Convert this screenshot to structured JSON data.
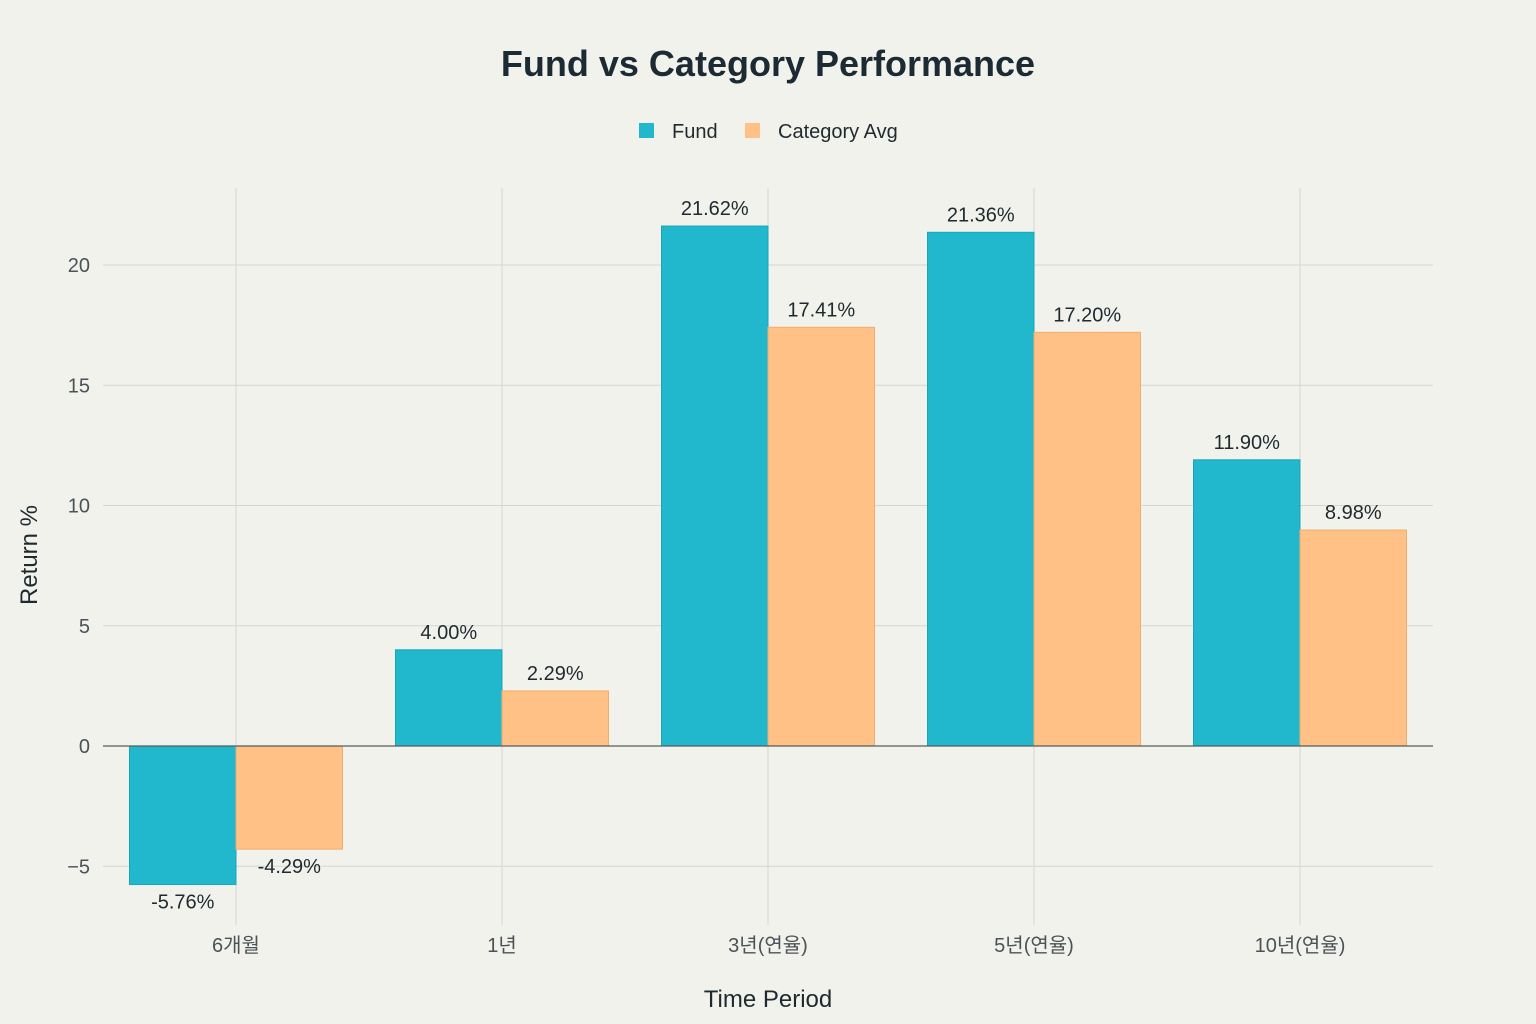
{
  "chart_data": {
    "type": "bar",
    "title": "Fund vs Category Performance",
    "xlabel": "Time Period",
    "ylabel": "Return %",
    "categories": [
      "6개월",
      "1년",
      "3년(연율)",
      "5년(연율)",
      "10년(연율)"
    ],
    "series": [
      {
        "name": "Fund",
        "color": "#21b7cc",
        "values": [
          -5.76,
          4.0,
          21.62,
          21.36,
          11.9
        ],
        "labels": [
          "-5.76%",
          "4.00%",
          "21.62%",
          "21.36%",
          "11.90%"
        ]
      },
      {
        "name": "Category Avg",
        "color": "#ffc185",
        "values": [
          -4.29,
          2.29,
          17.41,
          17.2,
          8.98
        ],
        "labels": [
          "-4.29%",
          "2.29%",
          "17.41%",
          "17.20%",
          "8.98%"
        ]
      }
    ],
    "ylim": [
      -7.3,
      23.2
    ],
    "yticks": [
      -5,
      0,
      5,
      10,
      15,
      20
    ],
    "ytick_labels": [
      "−5",
      "0",
      "5",
      "10",
      "15",
      "20"
    ],
    "grid": true,
    "legend_position": "top-center"
  }
}
